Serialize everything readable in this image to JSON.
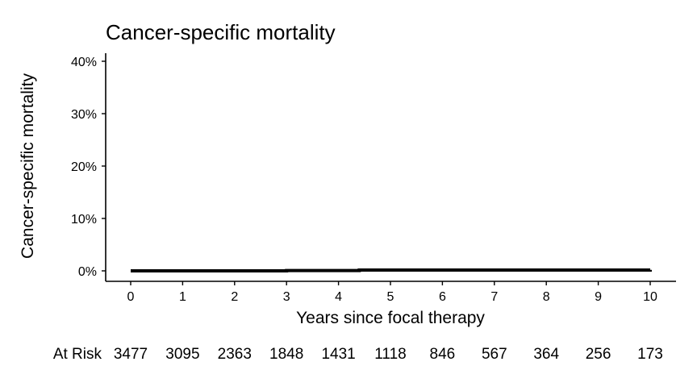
{
  "chart_data": {
    "type": "line",
    "title": "Cancer-specific mortality",
    "xlabel": "Years since focal therapy",
    "ylabel": "Cancer-specific mortality",
    "xlim": [
      0,
      10
    ],
    "ylim": [
      0,
      40
    ],
    "x_ticks": [
      "0",
      "1",
      "2",
      "3",
      "4",
      "5",
      "6",
      "7",
      "8",
      "9",
      "10"
    ],
    "y_ticks": [
      "0%",
      "10%",
      "20%",
      "30%",
      "40%"
    ],
    "y_tick_values": [
      0,
      10,
      20,
      30,
      40
    ],
    "grid": false,
    "series": [
      {
        "x": [
          0,
          3,
          4.4,
          10
        ],
        "y": [
          0,
          0.05,
          0.15,
          0.2
        ],
        "color": "#000000"
      }
    ],
    "at_risk": {
      "label": "At Risk",
      "values": [
        "3477",
        "3095",
        "2363",
        "1848",
        "1431",
        "1118",
        "846",
        "567",
        "364",
        "256",
        "173"
      ]
    }
  }
}
